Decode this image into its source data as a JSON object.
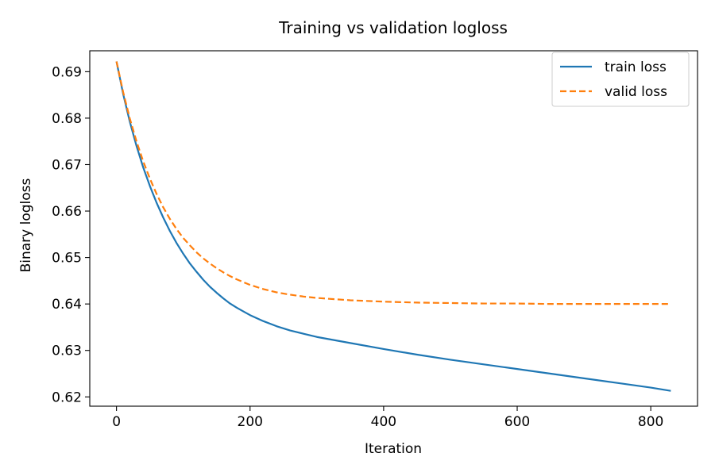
{
  "chart_data": {
    "type": "line",
    "title": "Training vs validation logloss",
    "xlabel": "Iteration",
    "ylabel": "Binary logloss",
    "xlim": [
      -40,
      870
    ],
    "ylim": [
      0.618,
      0.6945
    ],
    "xticks": [
      0,
      200,
      400,
      600,
      800
    ],
    "yticks": [
      0.62,
      0.63,
      0.64,
      0.65,
      0.66,
      0.67,
      0.68,
      0.69
    ],
    "grid": false,
    "legend_position": "top-right",
    "x": [
      0,
      10,
      20,
      30,
      40,
      50,
      60,
      70,
      80,
      90,
      100,
      110,
      120,
      130,
      140,
      150,
      160,
      170,
      180,
      190,
      200,
      220,
      240,
      260,
      280,
      300,
      350,
      400,
      450,
      500,
      550,
      600,
      650,
      700,
      750,
      800,
      830
    ],
    "series": [
      {
        "name": "train loss",
        "color": "#1f77b4",
        "dash": "solid",
        "values": [
          0.6922,
          0.6852,
          0.6792,
          0.674,
          0.6694,
          0.6654,
          0.6618,
          0.6586,
          0.6557,
          0.6531,
          0.6508,
          0.6487,
          0.6469,
          0.6452,
          0.6437,
          0.6424,
          0.6412,
          0.6401,
          0.6392,
          0.6384,
          0.6376,
          0.6363,
          0.6352,
          0.6343,
          0.6336,
          0.6329,
          0.6316,
          0.6303,
          0.6291,
          0.628,
          0.627,
          0.626,
          0.625,
          0.624,
          0.623,
          0.622,
          0.6213
        ]
      },
      {
        "name": "valid loss",
        "color": "#ff7f0e",
        "dash": "dashed",
        "values": [
          0.6922,
          0.6856,
          0.6799,
          0.675,
          0.6707,
          0.667,
          0.6637,
          0.6608,
          0.6583,
          0.6561,
          0.6542,
          0.6526,
          0.6511,
          0.6498,
          0.6487,
          0.6477,
          0.6468,
          0.646,
          0.6453,
          0.6447,
          0.6441,
          0.6432,
          0.6425,
          0.642,
          0.6416,
          0.6413,
          0.6408,
          0.6405,
          0.6403,
          0.6402,
          0.6401,
          0.6401,
          0.64,
          0.64,
          0.64,
          0.64,
          0.64
        ]
      }
    ]
  }
}
